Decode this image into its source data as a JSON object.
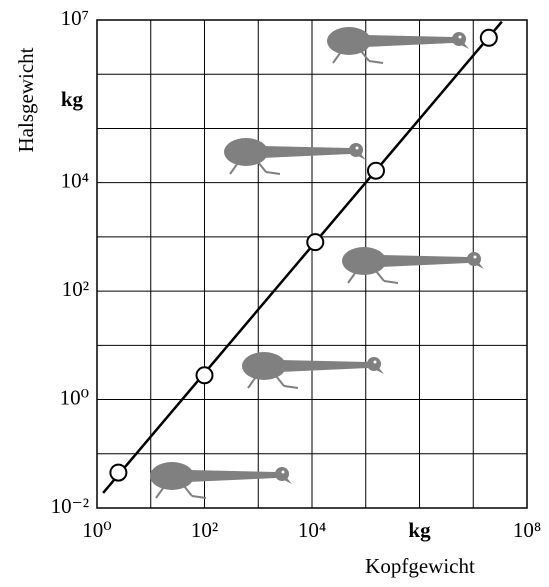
{
  "chart_data": {
    "type": "scatter",
    "x_label": "Kopfgewicht",
    "y_label": "Halsgewicht",
    "x_unit": "kg",
    "y_unit": "kg",
    "log_x": true,
    "log_y": true,
    "xlim": [
      1,
      100000000
    ],
    "ylim": [
      0.01,
      10000000
    ],
    "xticks": [
      {
        "value": 1,
        "label": "10⁰"
      },
      {
        "value": 100,
        "label": "10²"
      },
      {
        "value": 10000,
        "label": "10⁴"
      },
      {
        "value": 100000000,
        "label": "10⁸"
      }
    ],
    "yticks": [
      {
        "value": 0.01,
        "label": "10⁻²"
      },
      {
        "value": 1,
        "label": "10⁰"
      },
      {
        "value": 100,
        "label": "10²"
      },
      {
        "value": 10000,
        "label": "10⁴"
      },
      {
        "value": 10000000,
        "label": "10⁷"
      }
    ],
    "xgrid": [
      1,
      10,
      100,
      1000,
      10000,
      100000,
      1000000,
      10000000,
      100000000
    ],
    "ygrid": [
      0.01,
      0.1,
      1,
      10,
      100,
      1000,
      10000,
      100000,
      1000000,
      10000000
    ],
    "grid": true,
    "x_unit_at": 1000000,
    "y_unit_at": 316000,
    "series": [
      {
        "type": "scatter",
        "color": "#ffffff",
        "x": [
          2.5,
          100,
          11500,
          155000,
          19500000
        ],
        "values": [
          0.045,
          2.8,
          800,
          16600,
          4700000
        ]
      },
      {
        "type": "line",
        "color": "#000000",
        "x": [
          1.3,
          34000000
        ],
        "values": [
          0.019,
          9300000
        ]
      }
    ]
  }
}
